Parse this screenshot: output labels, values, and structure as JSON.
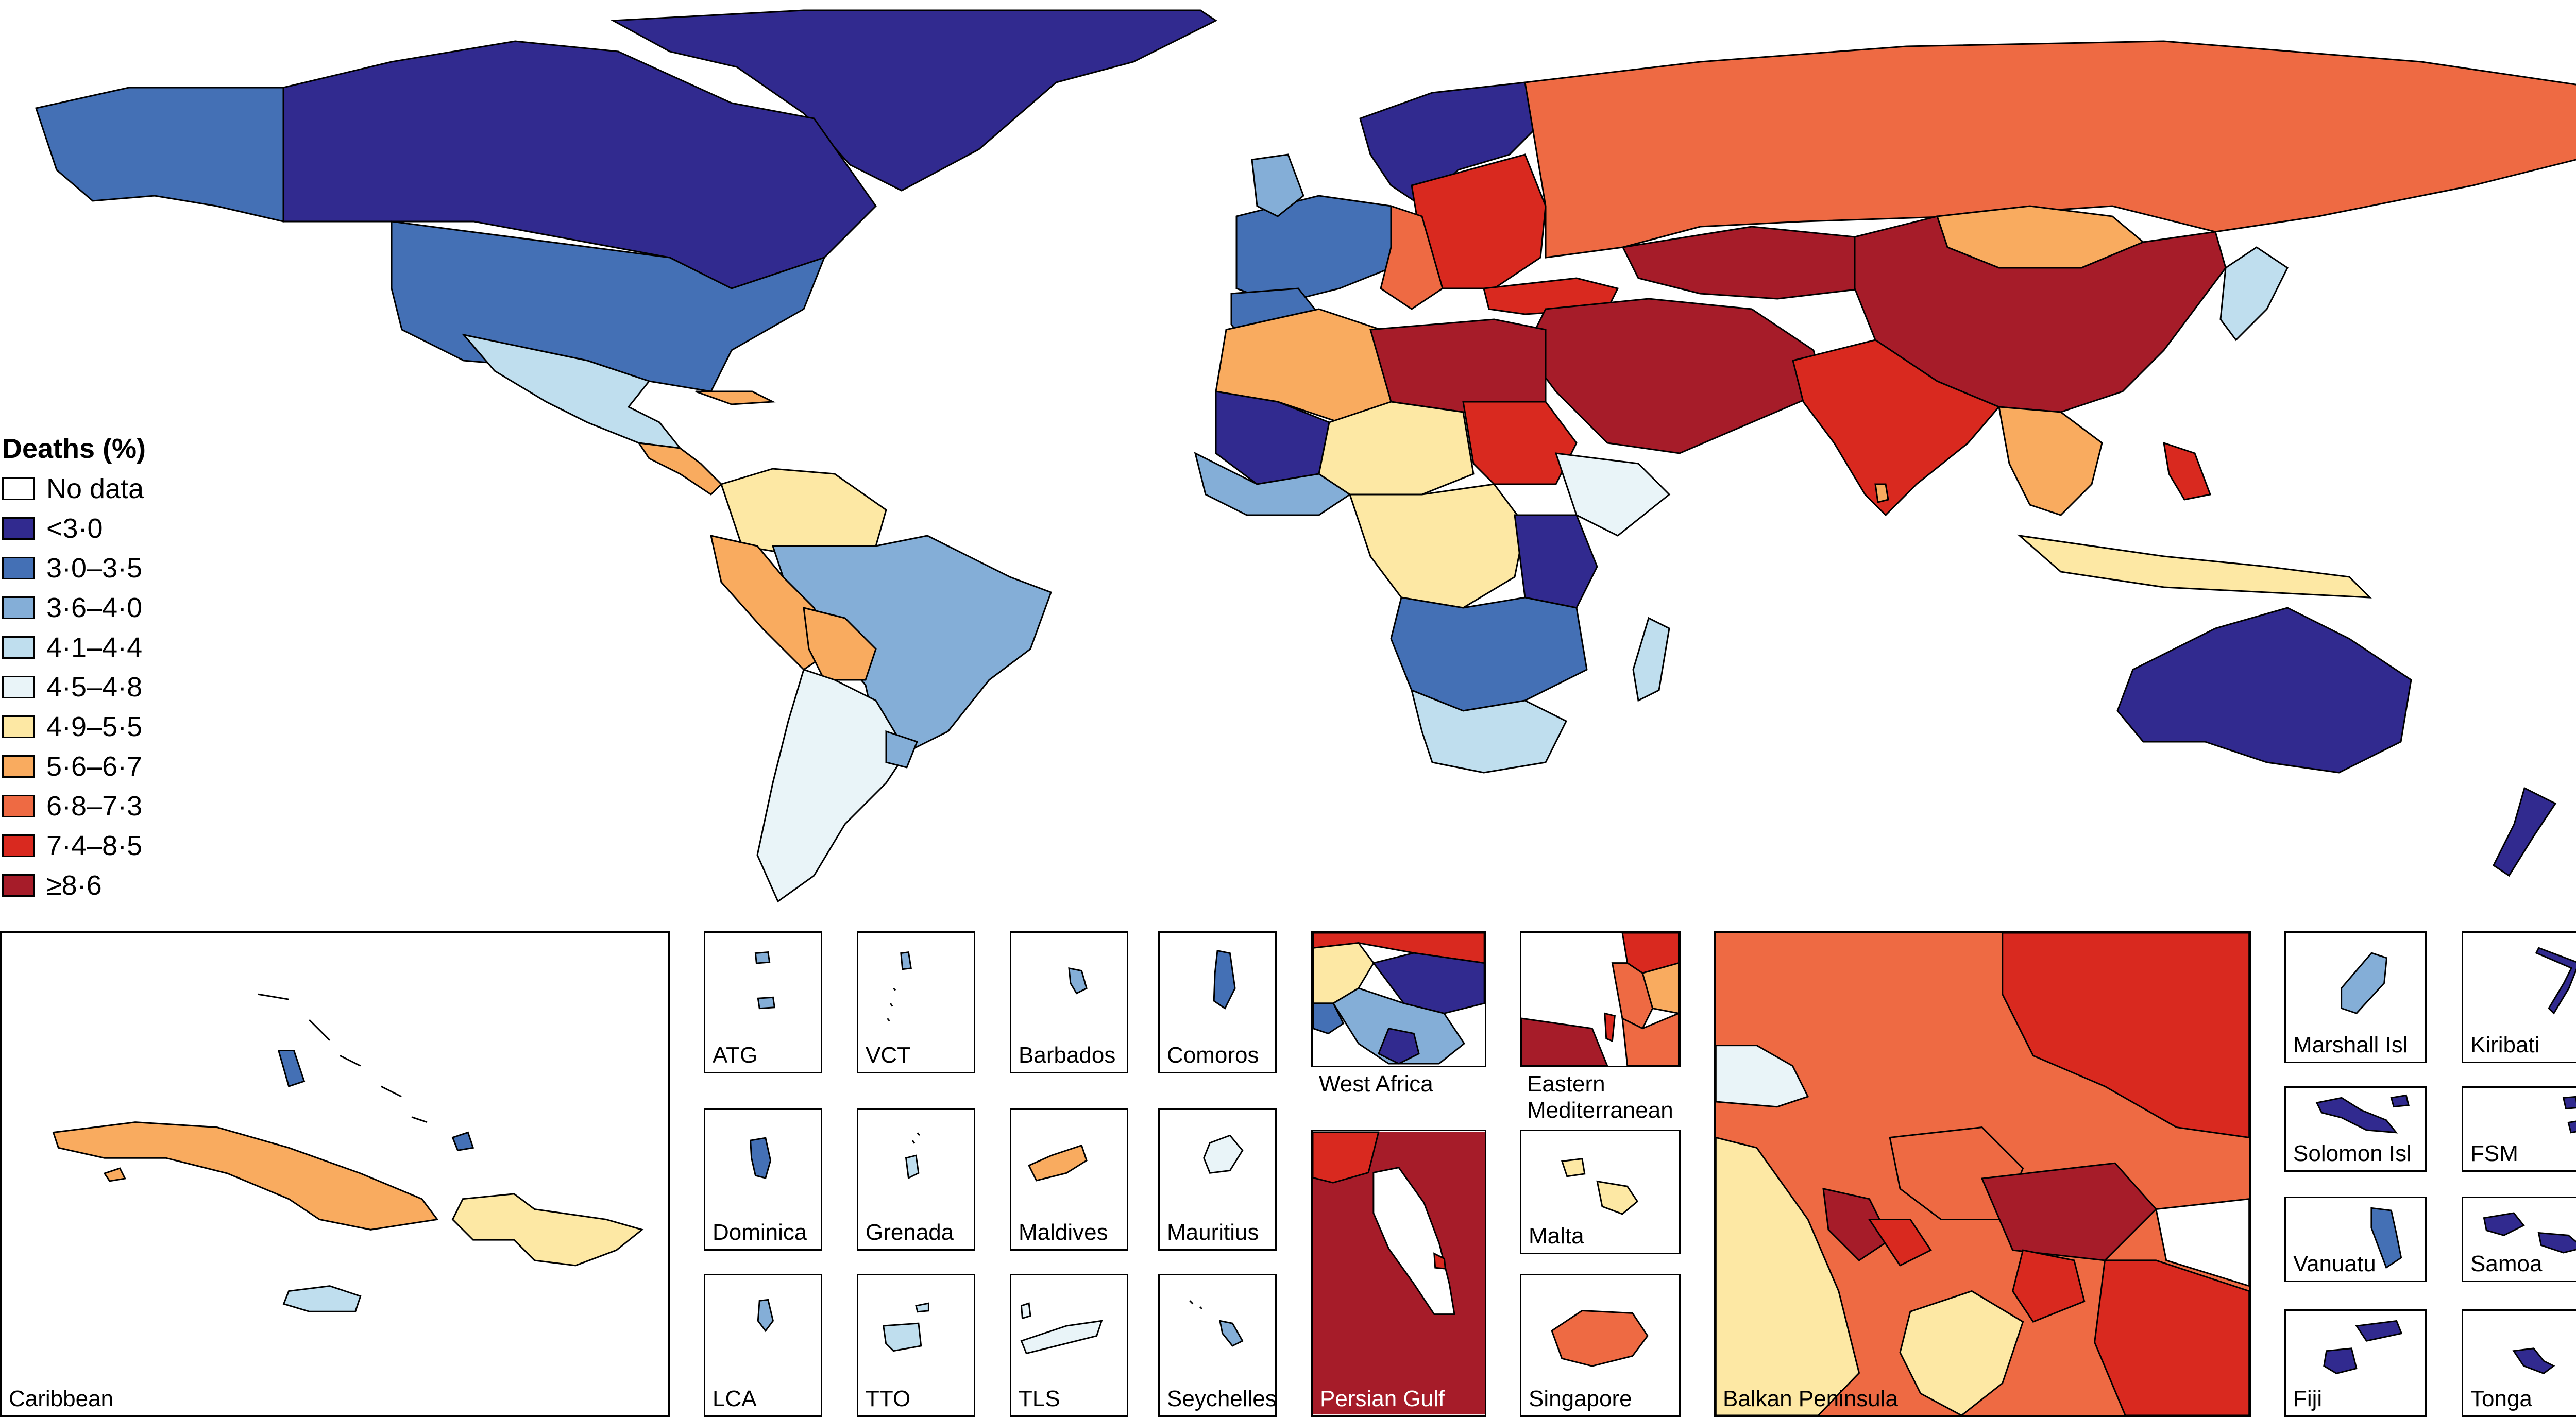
{
  "legend": {
    "title": "Deaths (%)",
    "items": [
      {
        "label": "No data",
        "color": "#ffffff"
      },
      {
        "label": "<3·0",
        "color": "#312a8f"
      },
      {
        "label": "3·0–3·5",
        "color": "#4470b5"
      },
      {
        "label": "3·6–4·0",
        "color": "#84aed7"
      },
      {
        "label": "4·1–4·4",
        "color": "#bfdeee"
      },
      {
        "label": "4·5–4·8",
        "color": "#e9f4f8"
      },
      {
        "label": "4·9–5·5",
        "color": "#fde8a4"
      },
      {
        "label": "5·6–6·7",
        "color": "#f9ab5f"
      },
      {
        "label": "6·8–7·3",
        "color": "#ee6a43"
      },
      {
        "label": "7·4–8·5",
        "color": "#d9291f"
      },
      {
        "label": "≥8·6",
        "color": "#a61c29"
      }
    ]
  },
  "insets": {
    "caribbean": "Caribbean",
    "atg": "ATG",
    "vct": "VCT",
    "barbados": "Barbados",
    "comoros": "Comoros",
    "dominica": "Dominica",
    "grenada": "Grenada",
    "maldives": "Maldives",
    "mauritius": "Mauritius",
    "lca": "LCA",
    "tto": "TTO",
    "tls": "TLS",
    "seychelles": "Seychelles",
    "west_africa": "West Africa",
    "persian_gulf": "Persian Gulf",
    "eastern_med_1": "Eastern",
    "eastern_med_2": "Mediterranean",
    "malta": "Malta",
    "singapore": "Singapore",
    "balkan": "Balkan Peninsula",
    "marshall": "Marshall Isl",
    "kiribati": "Kiribati",
    "solomon": "Solomon Isl",
    "fsm": "FSM",
    "vanuatu": "Vanuatu",
    "samoa": "Samoa",
    "fiji": "Fiji",
    "tonga": "Tonga"
  }
}
